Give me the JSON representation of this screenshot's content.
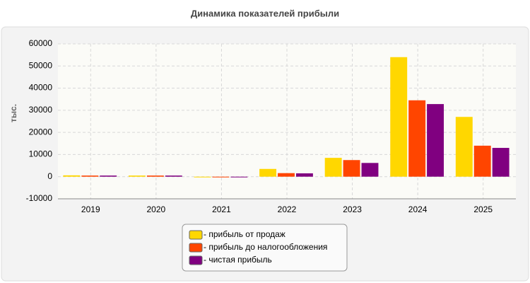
{
  "chart_data": {
    "type": "bar",
    "title": "Динамика показателей прибыли",
    "y_label": "тыс.",
    "categories": [
      "2019",
      "2020",
      "2021",
      "2022",
      "2023",
      "2024",
      "2025"
    ],
    "series": [
      {
        "name": "- прибыль от продаж",
        "color": "#ffd700",
        "values": [
          600,
          500,
          -200,
          3500,
          8500,
          54000,
          27000
        ]
      },
      {
        "name": "- прибыль до налогообложения",
        "color": "#ff4500",
        "values": [
          500,
          500,
          -200,
          1600,
          7500,
          34500,
          14000
        ]
      },
      {
        "name": "- чистая прибыль",
        "color": "#800080",
        "values": [
          500,
          500,
          -200,
          1500,
          6200,
          32800,
          13000
        ]
      }
    ],
    "ylim": [
      -10000,
      60000
    ],
    "yticks": [
      -10000,
      0,
      10000,
      20000,
      30000,
      40000,
      50000,
      60000
    ],
    "grid": true,
    "legend": "bottom"
  }
}
